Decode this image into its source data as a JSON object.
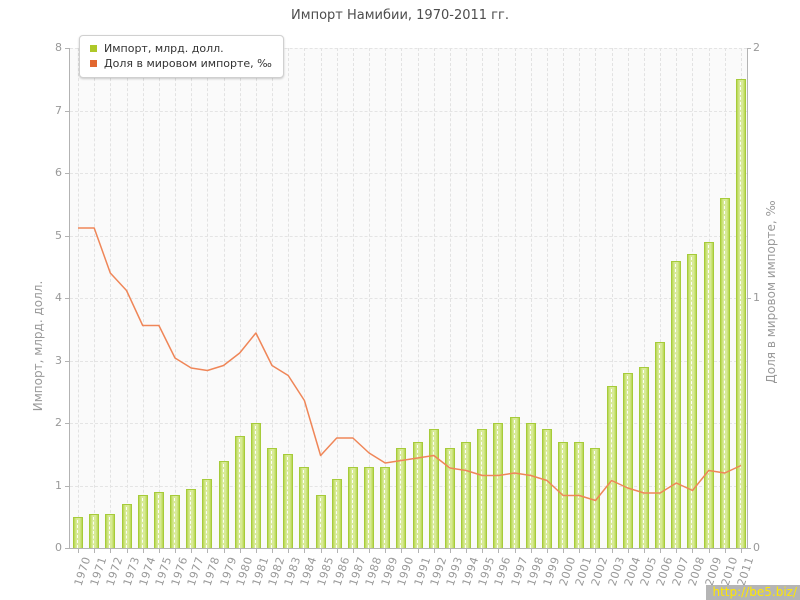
{
  "title": "Импорт Намибии, 1970-2011 гг.",
  "legend": {
    "items": [
      {
        "label": "Импорт, млрд. долл.",
        "color": "#aec829"
      },
      {
        "label": "Доля в мировом импорте, ‰",
        "color": "#e2672f"
      }
    ]
  },
  "axes": {
    "left_title": "Импорт, млрд. долл.",
    "right_title": "Доля в мировом импорте, ‰",
    "left_ticks": [
      0,
      1,
      2,
      3,
      4,
      5,
      6,
      7,
      8
    ],
    "right_ticks": [
      0,
      1,
      2
    ]
  },
  "watermark": "http://be5.biz/",
  "colors": {
    "bar_edge": "#a6cb3a",
    "bar_fill": "#d8ea98",
    "line": "#ef8658",
    "grid": "#e2e2e2",
    "axis": "#b3b3b3",
    "tick_text": "#999999",
    "plot_bg": "#fafafa",
    "watermark_bg": "#b5b5b5",
    "watermark_text": "#ffe800"
  },
  "chart_data": {
    "type": "bar",
    "title": "Импорт Намибии, 1970-2011 гг.",
    "x": [
      1970,
      1971,
      1972,
      1973,
      1974,
      1975,
      1976,
      1977,
      1978,
      1979,
      1980,
      1981,
      1982,
      1983,
      1984,
      1985,
      1986,
      1987,
      1988,
      1989,
      1990,
      1991,
      1992,
      1993,
      1994,
      1995,
      1996,
      1997,
      1998,
      1999,
      2000,
      2001,
      2002,
      2003,
      2004,
      2005,
      2006,
      2007,
      2008,
      2009,
      2010,
      2011
    ],
    "series": [
      {
        "name": "Импорт, млрд. долл.",
        "type": "bar",
        "axis": "left",
        "values": [
          0.5,
          0.55,
          0.55,
          0.7,
          0.85,
          0.9,
          0.85,
          0.95,
          1.1,
          1.4,
          1.8,
          2.0,
          1.6,
          1.5,
          1.3,
          0.85,
          1.1,
          1.3,
          1.3,
          1.3,
          1.6,
          1.7,
          1.9,
          1.6,
          1.7,
          1.9,
          2.0,
          2.1,
          2.0,
          1.9,
          1.7,
          1.7,
          1.6,
          2.6,
          2.8,
          2.9,
          3.3,
          4.6,
          4.7,
          4.9,
          5.6,
          7.5
        ]
      },
      {
        "name": "Доля в мировом импорте, ‰",
        "type": "line",
        "axis": "right",
        "values": [
          1.28,
          1.28,
          1.1,
          1.03,
          0.89,
          0.89,
          0.76,
          0.72,
          0.71,
          0.73,
          0.78,
          0.86,
          0.73,
          0.69,
          0.59,
          0.37,
          0.44,
          0.44,
          0.38,
          0.34,
          0.35,
          0.36,
          0.37,
          0.32,
          0.31,
          0.29,
          0.29,
          0.3,
          0.29,
          0.27,
          0.21,
          0.21,
          0.19,
          0.27,
          0.24,
          0.22,
          0.22,
          0.26,
          0.23,
          0.31,
          0.3,
          0.33
        ]
      }
    ],
    "y_left": {
      "label": "Импорт, млрд. долл.",
      "range": [
        0,
        8
      ]
    },
    "y_right": {
      "label": "Доля в мировом импорте, ‰",
      "range": [
        0,
        2
      ]
    },
    "grid": true,
    "legend_position": "top-left"
  }
}
